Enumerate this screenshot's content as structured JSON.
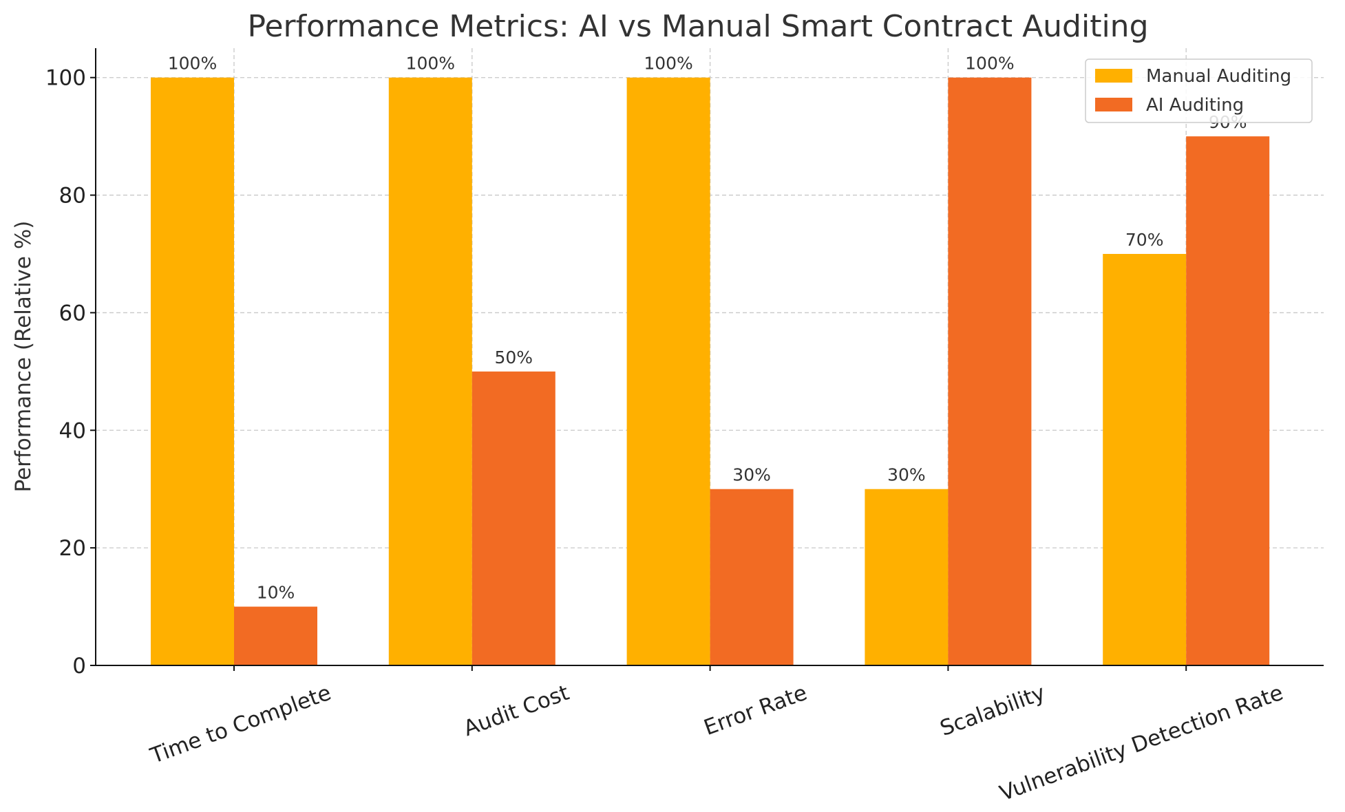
{
  "chart_data": {
    "type": "bar",
    "title": "Performance Metrics: AI vs Manual Smart Contract Auditing",
    "xlabel": "",
    "ylabel": "Performance (Relative %)",
    "categories": [
      "Time to Complete",
      "Audit Cost",
      "Error Rate",
      "Scalability",
      "Vulnerability Detection Rate"
    ],
    "series": [
      {
        "name": "Manual Auditing",
        "color": "#FFB000",
        "values": [
          100,
          100,
          100,
          30,
          70
        ],
        "labels": [
          "100%",
          "100%",
          "100%",
          "30%",
          "70%"
        ]
      },
      {
        "name": "AI Auditing",
        "color": "#F26B23",
        "values": [
          10,
          50,
          30,
          100,
          90
        ],
        "labels": [
          "10%",
          "50%",
          "30%",
          "100%",
          "90%"
        ]
      }
    ],
    "ylim": [
      0,
      105
    ],
    "yticks": [
      0,
      20,
      40,
      60,
      80,
      100
    ],
    "grid": true,
    "legend_position": "top-right"
  }
}
